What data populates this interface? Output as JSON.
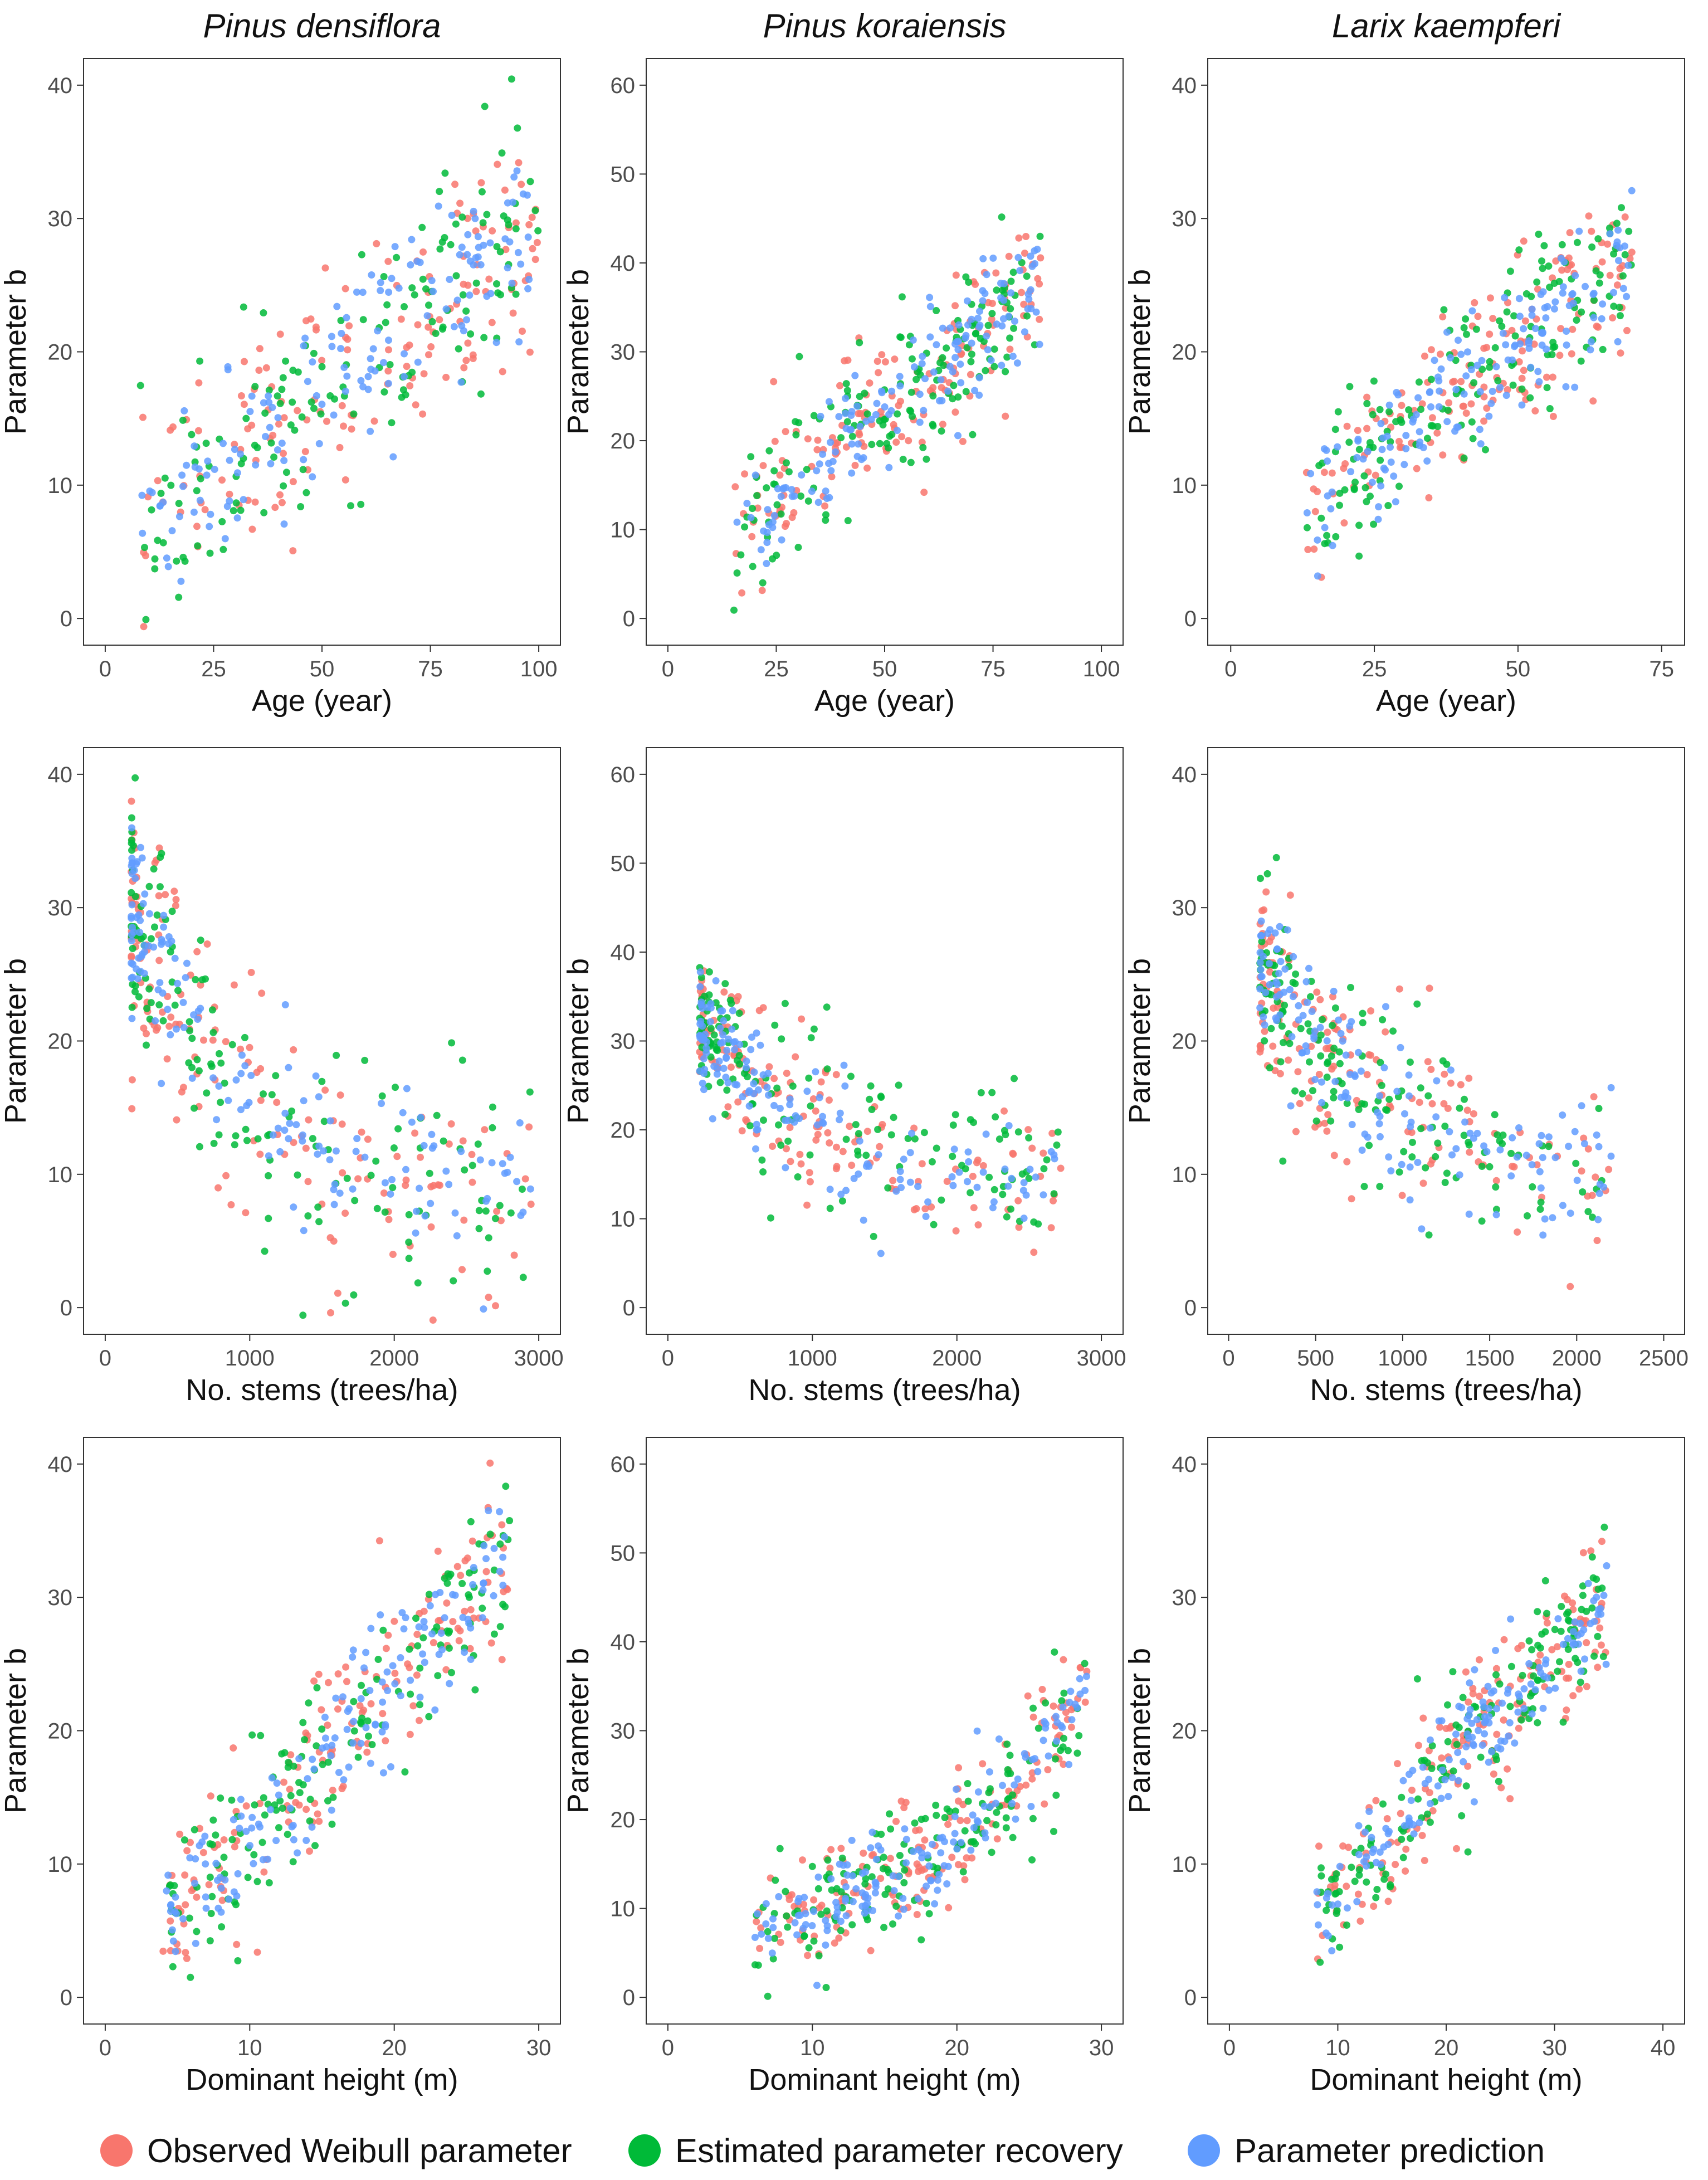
{
  "species": [
    "Pinus densiflora",
    "Pinus koraiensis",
    "Larix kaempferi"
  ],
  "legend": {
    "items": [
      {
        "label": "Observed Weibull parameter",
        "color": "#F8766D"
      },
      {
        "label": "Estimated parameter recovery",
        "color": "#00BA38"
      },
      {
        "label": "Parameter prediction",
        "color": "#619CFF"
      }
    ]
  },
  "chart_data": [
    {
      "type": "scatter",
      "species": "Pinus densiflora",
      "xlabel": "Age (year)",
      "ylabel": "Parameter b",
      "xlim": [
        -5,
        105
      ],
      "ylim": [
        -2,
        42
      ],
      "xticks": [
        0,
        25,
        50,
        75,
        100
      ],
      "yticks": [
        0,
        10,
        20,
        30,
        40
      ],
      "trend": {
        "kind": "linear",
        "x_range": [
          8,
          100
        ],
        "start": 6,
        "end": 30,
        "spread": 4.2
      },
      "series": [
        {
          "name": "Observed Weibull parameter",
          "n": 150
        },
        {
          "name": "Estimated parameter recovery",
          "n": 150
        },
        {
          "name": "Parameter prediction",
          "n": 150
        }
      ]
    },
    {
      "type": "scatter",
      "species": "Pinus koraiensis",
      "xlabel": "Age (year)",
      "ylabel": "Parameter b",
      "xlim": [
        -5,
        105
      ],
      "ylim": [
        -3,
        63
      ],
      "xticks": [
        0,
        25,
        50,
        75,
        100
      ],
      "yticks": [
        0,
        10,
        20,
        30,
        40,
        50,
        60
      ],
      "trend": {
        "kind": "linear",
        "x_range": [
          15,
          86
        ],
        "start": 9,
        "end": 38,
        "spread": 4.5
      },
      "series": [
        {
          "name": "Observed Weibull parameter",
          "n": 150
        },
        {
          "name": "Estimated parameter recovery",
          "n": 150
        },
        {
          "name": "Parameter prediction",
          "n": 150
        }
      ]
    },
    {
      "type": "scatter",
      "species": "Larix kaempferi",
      "xlabel": "Age (year)",
      "ylabel": "Parameter b",
      "xlim": [
        -4,
        79
      ],
      "ylim": [
        -2,
        42
      ],
      "xticks": [
        0,
        25,
        50,
        75
      ],
      "yticks": [
        0,
        10,
        20,
        30,
        40
      ],
      "trend": {
        "kind": "linear",
        "x_range": [
          13,
          70
        ],
        "start": 8,
        "end": 27,
        "spread": 3.2
      },
      "series": [
        {
          "name": "Observed Weibull parameter",
          "n": 150
        },
        {
          "name": "Estimated parameter recovery",
          "n": 150
        },
        {
          "name": "Parameter prediction",
          "n": 150
        }
      ]
    },
    {
      "type": "scatter",
      "species": "Pinus densiflora",
      "xlabel": "No. stems (trees/ha)",
      "ylabel": "Parameter b",
      "xlim": [
        -150,
        3150
      ],
      "ylim": [
        -2,
        42
      ],
      "xticks": [
        0,
        1000,
        2000,
        3000
      ],
      "yticks": [
        0,
        10,
        20,
        30,
        40
      ],
      "trend": {
        "kind": "decay",
        "x_range": [
          180,
          2950
        ],
        "start": 30,
        "end": 6,
        "spread": 4.5
      },
      "series": [
        {
          "name": "Observed Weibull parameter",
          "n": 150
        },
        {
          "name": "Estimated parameter recovery",
          "n": 150
        },
        {
          "name": "Parameter prediction",
          "n": 150
        }
      ]
    },
    {
      "type": "scatter",
      "species": "Pinus koraiensis",
      "xlabel": "No. stems (trees/ha)",
      "ylabel": "Parameter b",
      "xlim": [
        -150,
        3150
      ],
      "ylim": [
        -3,
        63
      ],
      "xticks": [
        0,
        1000,
        2000,
        3000
      ],
      "yticks": [
        0,
        10,
        20,
        30,
        40,
        50,
        60
      ],
      "trend": {
        "kind": "decay",
        "x_range": [
          220,
          2750
        ],
        "start": 32,
        "end": 13,
        "spread": 4.5
      },
      "series": [
        {
          "name": "Observed Weibull parameter",
          "n": 150
        },
        {
          "name": "Estimated parameter recovery",
          "n": 150
        },
        {
          "name": "Parameter prediction",
          "n": 150
        }
      ]
    },
    {
      "type": "scatter",
      "species": "Larix kaempferi",
      "xlabel": "No. stems (trees/ha)",
      "ylabel": "Parameter b",
      "xlim": [
        -120,
        2620
      ],
      "ylim": [
        -2,
        42
      ],
      "xticks": [
        0,
        500,
        1000,
        1500,
        2000,
        2500
      ],
      "yticks": [
        0,
        10,
        20,
        30,
        40
      ],
      "trend": {
        "kind": "decay",
        "x_range": [
          180,
          2200
        ],
        "start": 26,
        "end": 10,
        "spread": 3.6
      },
      "series": [
        {
          "name": "Observed Weibull parameter",
          "n": 150
        },
        {
          "name": "Estimated parameter recovery",
          "n": 150
        },
        {
          "name": "Parameter prediction",
          "n": 150
        }
      ]
    },
    {
      "type": "scatter",
      "species": "Pinus densiflora",
      "xlabel": "Dominant height (m)",
      "ylabel": "Parameter b",
      "xlim": [
        -1.5,
        31.5
      ],
      "ylim": [
        -2,
        42
      ],
      "xticks": [
        0,
        10,
        20,
        30
      ],
      "yticks": [
        0,
        10,
        20,
        30,
        40
      ],
      "trend": {
        "kind": "linear",
        "x_range": [
          4,
          28
        ],
        "start": 5,
        "end": 33,
        "spread": 3.3
      },
      "series": [
        {
          "name": "Observed Weibull parameter",
          "n": 150
        },
        {
          "name": "Estimated parameter recovery",
          "n": 150
        },
        {
          "name": "Parameter prediction",
          "n": 150
        }
      ]
    },
    {
      "type": "scatter",
      "species": "Pinus koraiensis",
      "xlabel": "Dominant height (m)",
      "ylabel": "Parameter b",
      "xlim": [
        -1.5,
        31.5
      ],
      "ylim": [
        -3,
        63
      ],
      "xticks": [
        0,
        10,
        20,
        30
      ],
      "yticks": [
        0,
        10,
        20,
        30,
        40,
        50,
        60
      ],
      "trend": {
        "kind": "exp",
        "x_range": [
          6,
          29
        ],
        "start": 8,
        "end": 36,
        "spread": 3.6
      },
      "series": [
        {
          "name": "Observed Weibull parameter",
          "n": 150
        },
        {
          "name": "Estimated parameter recovery",
          "n": 150
        },
        {
          "name": "Parameter prediction",
          "n": 150
        }
      ]
    },
    {
      "type": "scatter",
      "species": "Larix kaempferi",
      "xlabel": "Dominant height (m)",
      "ylabel": "Parameter b",
      "xlim": [
        -2,
        42
      ],
      "ylim": [
        -2,
        42
      ],
      "xticks": [
        0,
        10,
        20,
        30,
        40
      ],
      "yticks": [
        0,
        10,
        20,
        30,
        40
      ],
      "trend": {
        "kind": "linear",
        "x_range": [
          8,
          35
        ],
        "start": 6.5,
        "end": 30,
        "spread": 2.8
      },
      "series": [
        {
          "name": "Observed Weibull parameter",
          "n": 150
        },
        {
          "name": "Estimated parameter recovery",
          "n": 150
        },
        {
          "name": "Parameter prediction",
          "n": 150
        }
      ]
    }
  ]
}
